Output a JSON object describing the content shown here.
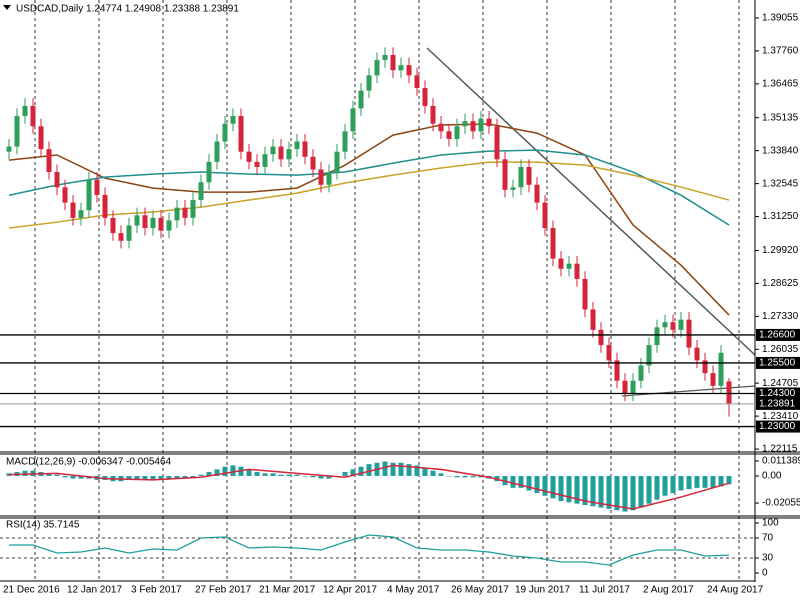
{
  "chart_data": [
    {
      "type": "candlestick",
      "title": "USDCAD,Daily  1.24774 1.24908 1.23388 1.23891",
      "ylim": [
        1.22,
        1.3976
      ],
      "yticks": [
        1.39055,
        {
          "value": 1.3776,
          "label": "1.37760"
        },
        1.36465,
        1.35135,
        {
          "value": 1.3384,
          "label": "1.33840"
        },
        1.32545,
        {
          "value": 1.3125,
          "label": "1.31250"
        },
        {
          "value": 1.2992,
          "label": "1.29920"
        },
        1.28625,
        {
          "value": 1.2733,
          "label": "1.27330"
        },
        1.26035,
        1.24705,
        {
          "value": 1.2341,
          "label": "1.23410"
        },
        1.22115
      ],
      "xlabels": [
        "21 Dec 2016",
        "12 Jan 2017",
        "3 Feb 2017",
        "27 Feb 2017",
        "21 Mar 2017",
        "12 Apr 2017",
        "4 May 2017",
        "26 May 2017",
        "19 Jun 2017",
        "11 Jul 2017",
        "2 Aug 2017",
        "24 Aug 2017"
      ],
      "hlines": [
        {
          "value": 1.266,
          "label": "1.26600"
        },
        {
          "value": 1.255,
          "label": "1.25500"
        },
        {
          "value": 1.243,
          "label": "1.24300"
        },
        {
          "value": 1.23,
          "label": "1.23000"
        }
      ],
      "last": 1.23891,
      "up_color": "#2e9e5b",
      "down_color": "#d6243a",
      "ohlc": [
        [
          1.338,
          1.343,
          1.335,
          1.34
        ],
        [
          1.34,
          1.355,
          1.337,
          1.352
        ],
        [
          1.352,
          1.359,
          1.349,
          1.356
        ],
        [
          1.356,
          1.359,
          1.345,
          1.348
        ],
        [
          1.348,
          1.351,
          1.336,
          1.339
        ],
        [
          1.339,
          1.342,
          1.327,
          1.33
        ],
        [
          1.33,
          1.333,
          1.321,
          1.324
        ],
        [
          1.324,
          1.327,
          1.315,
          1.318
        ],
        [
          1.318,
          1.321,
          1.309,
          1.312
        ],
        [
          1.312,
          1.318,
          1.309,
          1.315
        ],
        [
          1.315,
          1.33,
          1.312,
          1.327
        ],
        [
          1.327,
          1.33,
          1.318,
          1.321
        ],
        [
          1.321,
          1.324,
          1.309,
          1.312
        ],
        [
          1.312,
          1.315,
          1.303,
          1.306
        ],
        [
          1.306,
          1.309,
          1.3,
          1.303
        ],
        [
          1.303,
          1.312,
          1.3,
          1.309
        ],
        [
          1.309,
          1.316,
          1.306,
          1.313
        ],
        [
          1.313,
          1.316,
          1.305,
          1.308
        ],
        [
          1.308,
          1.315,
          1.305,
          1.312
        ],
        [
          1.312,
          1.315,
          1.304,
          1.307
        ],
        [
          1.307,
          1.314,
          1.304,
          1.311
        ],
        [
          1.311,
          1.319,
          1.308,
          1.316
        ],
        [
          1.316,
          1.319,
          1.309,
          1.312
        ],
        [
          1.312,
          1.322,
          1.309,
          1.319
        ],
        [
          1.319,
          1.329,
          1.316,
          1.326
        ],
        [
          1.326,
          1.337,
          1.323,
          1.334
        ],
        [
          1.334,
          1.345,
          1.331,
          1.342
        ],
        [
          1.342,
          1.352,
          1.339,
          1.349
        ],
        [
          1.349,
          1.355,
          1.346,
          1.352
        ],
        [
          1.352,
          1.355,
          1.335,
          1.338
        ],
        [
          1.338,
          1.341,
          1.331,
          1.334
        ],
        [
          1.334,
          1.337,
          1.329,
          1.332
        ],
        [
          1.332,
          1.34,
          1.329,
          1.337
        ],
        [
          1.337,
          1.343,
          1.334,
          1.34
        ],
        [
          1.34,
          1.343,
          1.332,
          1.335
        ],
        [
          1.335,
          1.342,
          1.332,
          1.339
        ],
        [
          1.339,
          1.345,
          1.336,
          1.342
        ],
        [
          1.342,
          1.345,
          1.333,
          1.336
        ],
        [
          1.336,
          1.339,
          1.328,
          1.331
        ],
        [
          1.331,
          1.334,
          1.322,
          1.325
        ],
        [
          1.325,
          1.333,
          1.322,
          1.33
        ],
        [
          1.33,
          1.341,
          1.327,
          1.338
        ],
        [
          1.338,
          1.349,
          1.335,
          1.346
        ],
        [
          1.346,
          1.358,
          1.343,
          1.355
        ],
        [
          1.355,
          1.365,
          1.352,
          1.362
        ],
        [
          1.362,
          1.371,
          1.359,
          1.368
        ],
        [
          1.368,
          1.377,
          1.365,
          1.374
        ],
        [
          1.374,
          1.379,
          1.371,
          1.376
        ],
        [
          1.376,
          1.379,
          1.367,
          1.37
        ],
        [
          1.37,
          1.375,
          1.367,
          1.372
        ],
        [
          1.372,
          1.375,
          1.365,
          1.368
        ],
        [
          1.368,
          1.371,
          1.36,
          1.363
        ],
        [
          1.363,
          1.366,
          1.353,
          1.356
        ],
        [
          1.356,
          1.359,
          1.346,
          1.349
        ],
        [
          1.349,
          1.352,
          1.343,
          1.346
        ],
        [
          1.346,
          1.349,
          1.34,
          1.343
        ],
        [
          1.343,
          1.351,
          1.34,
          1.348
        ],
        [
          1.348,
          1.353,
          1.345,
          1.35
        ],
        [
          1.35,
          1.353,
          1.343,
          1.346
        ],
        [
          1.346,
          1.354,
          1.343,
          1.351
        ],
        [
          1.351,
          1.354,
          1.345,
          1.348
        ],
        [
          1.348,
          1.351,
          1.332,
          1.335
        ],
        [
          1.335,
          1.338,
          1.32,
          1.323
        ],
        [
          1.323,
          1.327,
          1.32,
          1.324
        ],
        [
          1.324,
          1.335,
          1.321,
          1.332
        ],
        [
          1.332,
          1.335,
          1.322,
          1.325
        ],
        [
          1.325,
          1.328,
          1.315,
          1.318
        ],
        [
          1.318,
          1.321,
          1.305,
          1.308
        ],
        [
          1.308,
          1.311,
          1.293,
          1.296
        ],
        [
          1.296,
          1.299,
          1.289,
          1.292
        ],
        [
          1.292,
          1.297,
          1.289,
          1.294
        ],
        [
          1.294,
          1.297,
          1.285,
          1.288
        ],
        [
          1.288,
          1.291,
          1.273,
          1.276
        ],
        [
          1.276,
          1.279,
          1.265,
          1.268
        ],
        [
          1.268,
          1.271,
          1.259,
          1.262
        ],
        [
          1.262,
          1.265,
          1.253,
          1.256
        ],
        [
          1.256,
          1.259,
          1.245,
          1.248
        ],
        [
          1.248,
          1.251,
          1.24,
          1.243
        ],
        [
          1.243,
          1.251,
          1.24,
          1.248
        ],
        [
          1.248,
          1.257,
          1.245,
          1.254
        ],
        [
          1.254,
          1.265,
          1.251,
          1.262
        ],
        [
          1.262,
          1.272,
          1.259,
          1.269
        ],
        [
          1.269,
          1.274,
          1.266,
          1.271
        ],
        [
          1.271,
          1.274,
          1.265,
          1.268
        ],
        [
          1.268,
          1.275,
          1.265,
          1.272
        ],
        [
          1.272,
          1.275,
          1.258,
          1.261
        ],
        [
          1.261,
          1.264,
          1.253,
          1.256
        ],
        [
          1.256,
          1.259,
          1.248,
          1.251
        ],
        [
          1.251,
          1.254,
          1.243,
          1.246
        ],
        [
          1.246,
          1.262,
          1.243,
          1.259
        ],
        [
          1.24774,
          1.24908,
          1.23388,
          1.23891
        ]
      ],
      "series": [
        {
          "color": "#8b4513",
          "values": [
            1.3347,
            1.3367,
            1.3276,
            1.3237,
            1.3221,
            1.3221,
            1.3237,
            1.3327,
            1.3445,
            1.3485,
            1.3489,
            1.3453,
            1.3367,
            1.3092,
            1.2934,
            1.2738
          ]
        },
        {
          "color": "#1f8f8f",
          "values": [
            1.3209,
            1.3249,
            1.328,
            1.3292,
            1.33,
            1.3292,
            1.3288,
            1.33,
            1.3335,
            1.3367,
            1.3382,
            1.3386,
            1.3367,
            1.33,
            1.3209,
            1.3092
          ]
        },
        {
          "color": "#c9a227",
          "values": [
            1.308,
            1.3103,
            1.3131,
            1.3143,
            1.3162,
            1.319,
            1.3217,
            1.3257,
            1.3288,
            1.3316,
            1.3339,
            1.3339,
            1.3327,
            1.3288,
            1.3241,
            1.319
          ]
        }
      ]
    },
    {
      "type": "bar",
      "title": "MACD(12,26,9) -0.006347 -0.005464",
      "ylim": [
        -0.0296,
        0.0159
      ],
      "yticks": [
        0.011389,
        {
          "value": 0,
          "label": "0.00"
        },
        -0.020556
      ],
      "color": "#1f9e9e",
      "values": [
        0.002,
        0.003,
        0.004,
        0.004,
        0.003,
        0.002,
        0.001,
        -0.001,
        -0.002,
        -0.002,
        -0.002,
        -0.003,
        -0.003,
        -0.004,
        -0.004,
        -0.003,
        -0.003,
        -0.003,
        -0.003,
        -0.003,
        -0.002,
        -0.002,
        -0.002,
        -0.001,
        0.001,
        0.003,
        0.005,
        0.007,
        0.008,
        0.007,
        0.005,
        0.003,
        0.002,
        0.002,
        0.001,
        0.001,
        0.001,
        0,
        -0.001,
        -0.002,
        -0.002,
        0,
        0.003,
        0.005,
        0.007,
        0.009,
        0.01,
        0.011,
        0.01,
        0.01,
        0.009,
        0.008,
        0.006,
        0.004,
        0.002,
        0,
        -0.001,
        -0.001,
        -0.001,
        -0.001,
        -0.002,
        -0.004,
        -0.007,
        -0.009,
        -0.009,
        -0.011,
        -0.013,
        -0.015,
        -0.017,
        -0.019,
        -0.02,
        -0.021,
        -0.022,
        -0.023,
        -0.024,
        -0.025,
        -0.026,
        -0.027,
        -0.026,
        -0.024,
        -0.021,
        -0.018,
        -0.015,
        -0.013,
        -0.011,
        -0.01,
        -0.009,
        -0.009,
        -0.009,
        -0.008,
        -0.006347
      ],
      "signal": {
        "color": "#d6243a",
        "values": [
          0.001,
          0.002,
          -0.002,
          -0.003,
          -0.001,
          0.005,
          0.002,
          -0.001,
          0.008,
          0.005,
          -0.001,
          -0.01,
          -0.019,
          -0.025,
          -0.016,
          -0.005464
        ]
      }
    },
    {
      "type": "line",
      "title": "RSI(14) 35.7145",
      "ylim": [
        -14,
        110
      ],
      "yticks": [
        100,
        70,
        30,
        0
      ],
      "levels": [
        70,
        30
      ],
      "color": "#1f9e9e",
      "values": [
        56,
        56,
        40,
        42,
        50,
        40,
        48,
        46,
        70,
        72,
        50,
        52,
        50,
        46,
        62,
        76,
        72,
        50,
        46,
        46,
        42,
        34,
        30,
        22,
        22,
        16,
        36,
        46,
        46,
        34,
        35.7145
      ]
    }
  ]
}
